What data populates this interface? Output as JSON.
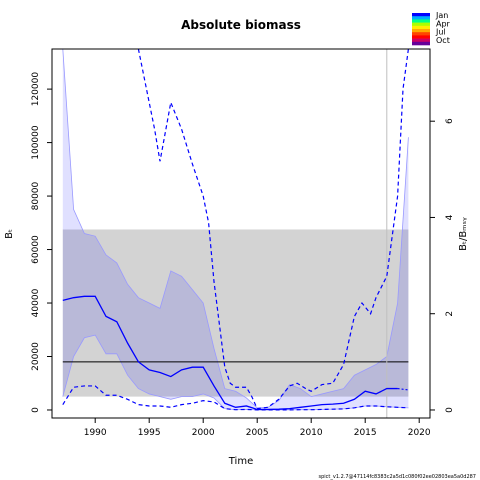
{
  "chart_data": {
    "type": "line",
    "title": "Absolute biomass",
    "xlabel": "Time",
    "ylabel": "Bₜ",
    "ylabel_right": "Bₜ/Bₘₛᵧ",
    "footer": "spict_v1.2.7@47114fc8383c2a5d1c080f02ee02803ea5a0d287",
    "xlim": [
      1986,
      2021
    ],
    "ylim": [
      -3000,
      135000
    ],
    "xticks": [
      1990,
      1995,
      2000,
      2005,
      2010,
      2015,
      2020
    ],
    "yticks": [
      0,
      20000,
      40000,
      60000,
      80000,
      100000,
      120000
    ],
    "right_ticks": [
      0,
      2,
      4,
      6
    ],
    "right_scale_per_unit": 18000,
    "grid": false,
    "last_observation_x": 2017.0,
    "bmsy_ci_band": {
      "lower": 5000,
      "upper": 67500,
      "x_start": 1987,
      "x_end": 2019
    },
    "bmsy_line": {
      "value": 18000,
      "x_start": 1987,
      "x_end": 2019
    },
    "legend": {
      "placement": "top-right",
      "entries": [
        "Jan",
        "Apr",
        "Jul",
        "Oct"
      ],
      "colors": [
        "#0000ff",
        "#00aaff",
        "#00ff88",
        "#aaff00",
        "#ffee00",
        "#ffaa00",
        "#ff4400",
        "#ff0000",
        "#cc0066",
        "#660099"
      ]
    },
    "colors": {
      "estimate": "#0000ff",
      "ci_fill": "rgba(0,0,255,0.12)",
      "ci_edge": "#9999ff",
      "bmsy_band": "#d3d3d3",
      "vline": "#bfbfbf"
    },
    "series": [
      {
        "role": "estimate",
        "x": [
          1987,
          1988,
          1989,
          1990,
          1991,
          1992,
          1993,
          1994,
          1995,
          1996,
          1997,
          1998,
          1999,
          2000,
          2001,
          2002,
          2003,
          2004,
          2005,
          2006,
          2007,
          2008,
          2009,
          2010,
          2011,
          2012,
          2013,
          2014,
          2015,
          2016,
          2017,
          2018
        ],
        "y": [
          41000,
          42000,
          42500,
          42500,
          35000,
          33000,
          25000,
          18000,
          15000,
          14000,
          12500,
          15000,
          16000,
          16000,
          9000,
          2500,
          1000,
          1500,
          200,
          200,
          300,
          500,
          1000,
          1500,
          2000,
          2200,
          2500,
          4000,
          7000,
          6000,
          8000,
          8000
        ]
      },
      {
        "role": "ci_upper",
        "x": [
          1987,
          1988,
          1989,
          1990,
          1991,
          1992,
          1993,
          1994,
          1995,
          1996,
          1997,
          1998,
          1999,
          2000,
          2001,
          2002,
          2003,
          2004,
          2005,
          2006,
          2007,
          2008,
          2009,
          2010,
          2011,
          2012,
          2013,
          2014,
          2015,
          2016,
          2017,
          2018,
          2019
        ],
        "y": [
          135000,
          75000,
          66000,
          65000,
          58000,
          55000,
          47000,
          42000,
          40000,
          38000,
          52000,
          50000,
          45000,
          40000,
          23000,
          8000,
          7000,
          4500,
          800,
          1000,
          3500,
          9500,
          8000,
          5000,
          6000,
          7000,
          8000,
          13000,
          15000,
          17000,
          20000,
          40000,
          102000
        ]
      },
      {
        "role": "ci_lower",
        "x": [
          1987,
          1988,
          1989,
          1990,
          1991,
          1992,
          1993,
          1994,
          1995,
          1996,
          1997,
          1998,
          1999,
          2000,
          2001,
          2002,
          2003,
          2004,
          2005,
          2006,
          2007,
          2008,
          2009,
          2010,
          2011,
          2012,
          2013,
          2014,
          2015,
          2016,
          2017,
          2018,
          2019
        ],
        "y": [
          5000,
          20000,
          27000,
          28000,
          21000,
          21000,
          13000,
          8000,
          6000,
          5000,
          4000,
          5000,
          5000,
          6000,
          4500,
          500,
          100,
          200,
          50,
          50,
          50,
          50,
          100,
          100,
          200,
          300,
          400,
          800,
          1500,
          1500,
          1200,
          1000,
          800
        ]
      },
      {
        "role": "ci_dashed_upper",
        "x": [
          1994,
          1994.5,
          1995.5,
          1996,
          1997,
          1998,
          1999,
          2000,
          2000.5,
          2001,
          2002,
          2002.5,
          2003,
          2004,
          2004.5,
          2005,
          2006,
          2007,
          2008,
          2008.7,
          2009.5,
          2010,
          2011,
          2012,
          2013,
          2014,
          2014.7,
          2015.5,
          2016,
          2017,
          2018,
          2018.5,
          2019
        ],
        "y": [
          135000,
          125000,
          105000,
          93000,
          115000,
          105000,
          92000,
          80000,
          70000,
          48000,
          16000,
          10000,
          8500,
          8500,
          5000,
          500,
          1000,
          4000,
          9000,
          10000,
          8000,
          7000,
          9500,
          10000,
          17000,
          35000,
          40000,
          36000,
          42000,
          50000,
          80000,
          120000,
          135000
        ]
      },
      {
        "role": "ci_dashed_lower",
        "x": [
          1987,
          1988,
          1989,
          1990,
          1991,
          1992,
          1993,
          1994,
          1995,
          1996,
          1997,
          1998,
          1999,
          2000,
          2001,
          2002,
          2003,
          2004,
          2005,
          2006,
          2007,
          2008,
          2009,
          2010,
          2011,
          2012,
          2013,
          2014,
          2015,
          2016,
          2017,
          2018,
          2019
        ],
        "y": [
          2000,
          8500,
          9000,
          9000,
          5500,
          5500,
          4000,
          2000,
          1500,
          1500,
          1000,
          2000,
          2500,
          3500,
          3000,
          500,
          100,
          200,
          50,
          50,
          50,
          50,
          100,
          100,
          200,
          300,
          400,
          800,
          1500,
          1500,
          1200,
          1000,
          800
        ]
      }
    ]
  }
}
